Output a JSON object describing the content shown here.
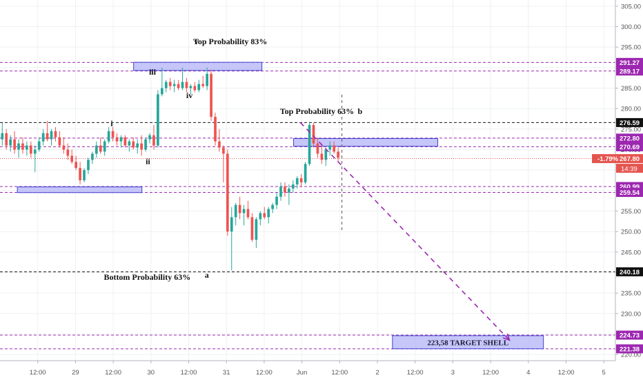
{
  "chart_data": {
    "type": "candlestick",
    "title": "",
    "xlabel": "",
    "ylabel": "",
    "ylim": [
      218.5,
      306.5
    ],
    "y_ticks": [
      220,
      225,
      230,
      235,
      240,
      245,
      250,
      255,
      260,
      265,
      270,
      275,
      280,
      285,
      290,
      295,
      300,
      305
    ],
    "x_ticks": [
      {
        "label": "12:00",
        "t": 0.5
      },
      {
        "label": "29",
        "t": 1
      },
      {
        "label": "12:00",
        "t": 1.5
      },
      {
        "label": "30",
        "t": 2
      },
      {
        "label": "12:00",
        "t": 2.5
      },
      {
        "label": "31",
        "t": 3
      },
      {
        "label": "12:00",
        "t": 3.5
      },
      {
        "label": "Jun",
        "t": 4
      },
      {
        "label": "12:00",
        "t": 4.5
      },
      {
        "label": "2",
        "t": 5
      },
      {
        "label": "12:00",
        "t": 5.5
      },
      {
        "label": "3",
        "t": 6
      },
      {
        "label": "12:00",
        "t": 6.5
      },
      {
        "label": "4",
        "t": 7
      },
      {
        "label": "12:00",
        "t": 7.5
      },
      {
        "label": "5",
        "t": 8
      }
    ],
    "grid": true,
    "colors": {
      "up": "#26a69a",
      "down": "#ef5350",
      "purple_line": "#9c27b0",
      "black_line": "#000000",
      "zone_fill": "#b3b3f5",
      "zone_edge": "#3f3fd0",
      "price_label": "#e5554f"
    },
    "current_price": {
      "value": 267.8,
      "label": "267.80",
      "change_label": "-1.79%",
      "countdown": "14:39"
    },
    "price_levels": [
      {
        "value": 291.27,
        "label": "291.27",
        "style": "purple"
      },
      {
        "value": 289.17,
        "label": "289.17",
        "style": "purple"
      },
      {
        "value": 276.59,
        "label": "276.59",
        "style": "black"
      },
      {
        "value": 272.8,
        "label": "272.80",
        "style": "purple"
      },
      {
        "value": 270.69,
        "label": "270.69",
        "style": "purple"
      },
      {
        "value": 260.99,
        "label": "260.99",
        "style": "purple"
      },
      {
        "value": 259.54,
        "label": "259.54",
        "style": "purple"
      },
      {
        "value": 240.18,
        "label": "240.18",
        "style": "black"
      },
      {
        "value": 224.73,
        "label": "224.73",
        "style": "purple"
      },
      {
        "value": 221.38,
        "label": "221.38",
        "style": "purple"
      }
    ],
    "zones": [
      {
        "t0": 1.77,
        "t1": 3.47,
        "y0": 289.3,
        "y1": 291.3,
        "label": ""
      },
      {
        "t0": 0.23,
        "t1": 1.88,
        "y0": 259.5,
        "y1": 260.9,
        "label": ""
      },
      {
        "t0": 3.89,
        "t1": 5.8,
        "y0": 270.8,
        "y1": 272.7,
        "label": ""
      },
      {
        "t0": 5.2,
        "t1": 7.2,
        "y0": 221.4,
        "y1": 224.6,
        "label": "223,58 TARGET SHELL"
      }
    ],
    "annotations": [
      {
        "text": "v",
        "t": 2.6,
        "y": 295.7
      },
      {
        "text": "Top Probability 83%",
        "t": 3.05,
        "y": 295.7
      },
      {
        "text": "iii",
        "t": 2.02,
        "y": 288.3
      },
      {
        "text": "iv",
        "t": 2.51,
        "y": 282.6
      },
      {
        "text": "i",
        "t": 1.48,
        "y": 275.7
      },
      {
        "text": "ii",
        "t": 1.96,
        "y": 266.5
      },
      {
        "text": "Top Probability 63%",
        "t": 4.2,
        "y": 278.7
      },
      {
        "text": "b",
        "t": 4.77,
        "y": 278.7
      },
      {
        "text": "Bottom Probability 63%",
        "t": 1.95,
        "y": 238.2
      },
      {
        "text": "a",
        "t": 2.74,
        "y": 238.7
      }
    ],
    "projection": {
      "t0": 3.98,
      "y0": 276.6,
      "t1": 6.75,
      "y1": 223.5
    },
    "vertical_marker_t": 4.53,
    "candles": [
      {
        "o": 272.5,
        "h": 276.5,
        "l": 271.0,
        "c": 274.0
      },
      {
        "o": 274.0,
        "h": 275.0,
        "l": 270.0,
        "c": 271.0
      },
      {
        "o": 271.0,
        "h": 273.5,
        "l": 269.5,
        "c": 272.5
      },
      {
        "o": 272.5,
        "h": 274.5,
        "l": 269.0,
        "c": 270.0
      },
      {
        "o": 270.0,
        "h": 272.5,
        "l": 268.0,
        "c": 271.5
      },
      {
        "o": 271.5,
        "h": 273.0,
        "l": 269.0,
        "c": 270.0
      },
      {
        "o": 270.0,
        "h": 272.0,
        "l": 268.5,
        "c": 271.0
      },
      {
        "o": 271.0,
        "h": 272.0,
        "l": 268.0,
        "c": 269.0
      },
      {
        "o": 269.0,
        "h": 271.0,
        "l": 264.5,
        "c": 270.0
      },
      {
        "o": 270.0,
        "h": 273.0,
        "l": 269.5,
        "c": 272.0
      },
      {
        "o": 272.0,
        "h": 275.0,
        "l": 271.0,
        "c": 274.0
      },
      {
        "o": 274.0,
        "h": 277.0,
        "l": 272.0,
        "c": 272.5
      },
      {
        "o": 272.5,
        "h": 275.0,
        "l": 271.0,
        "c": 274.5
      },
      {
        "o": 274.5,
        "h": 275.5,
        "l": 272.0,
        "c": 273.0
      },
      {
        "o": 273.0,
        "h": 274.5,
        "l": 270.5,
        "c": 271.0
      },
      {
        "o": 271.0,
        "h": 273.0,
        "l": 269.0,
        "c": 270.0
      },
      {
        "o": 270.0,
        "h": 271.5,
        "l": 267.5,
        "c": 268.5
      },
      {
        "o": 268.5,
        "h": 270.0,
        "l": 266.5,
        "c": 267.0
      },
      {
        "o": 267.0,
        "h": 268.5,
        "l": 265.0,
        "c": 265.5
      },
      {
        "o": 265.5,
        "h": 267.0,
        "l": 261.5,
        "c": 262.5
      },
      {
        "o": 262.5,
        "h": 265.5,
        "l": 262.0,
        "c": 265.0
      },
      {
        "o": 265.0,
        "h": 268.0,
        "l": 264.0,
        "c": 267.5
      },
      {
        "o": 267.5,
        "h": 269.5,
        "l": 266.5,
        "c": 269.0
      },
      {
        "o": 269.0,
        "h": 272.0,
        "l": 268.0,
        "c": 271.0
      },
      {
        "o": 271.0,
        "h": 273.0,
        "l": 269.0,
        "c": 269.5
      },
      {
        "o": 269.5,
        "h": 272.5,
        "l": 268.5,
        "c": 272.0
      },
      {
        "o": 272.0,
        "h": 275.5,
        "l": 271.5,
        "c": 274.5
      },
      {
        "o": 274.5,
        "h": 275.5,
        "l": 272.0,
        "c": 273.0
      },
      {
        "o": 273.0,
        "h": 274.0,
        "l": 271.0,
        "c": 272.0
      },
      {
        "o": 272.0,
        "h": 273.5,
        "l": 270.5,
        "c": 273.0
      },
      {
        "o": 273.0,
        "h": 273.5,
        "l": 270.5,
        "c": 271.0
      },
      {
        "o": 271.0,
        "h": 272.5,
        "l": 269.5,
        "c": 272.0
      },
      {
        "o": 272.0,
        "h": 273.0,
        "l": 270.0,
        "c": 270.5
      },
      {
        "o": 270.5,
        "h": 272.5,
        "l": 269.0,
        "c": 271.5
      },
      {
        "o": 271.5,
        "h": 273.5,
        "l": 268.5,
        "c": 270.0
      },
      {
        "o": 270.0,
        "h": 273.0,
        "l": 269.5,
        "c": 272.5
      },
      {
        "o": 272.5,
        "h": 274.0,
        "l": 271.5,
        "c": 273.5
      },
      {
        "o": 273.5,
        "h": 276.0,
        "l": 270.0,
        "c": 271.0
      },
      {
        "o": 271.0,
        "h": 284.5,
        "l": 270.5,
        "c": 283.5
      },
      {
        "o": 283.5,
        "h": 290.0,
        "l": 283.0,
        "c": 285.0
      },
      {
        "o": 285.0,
        "h": 287.0,
        "l": 284.0,
        "c": 286.5
      },
      {
        "o": 286.5,
        "h": 287.5,
        "l": 284.5,
        "c": 285.5
      },
      {
        "o": 285.5,
        "h": 287.0,
        "l": 284.0,
        "c": 286.0
      },
      {
        "o": 286.0,
        "h": 287.0,
        "l": 284.5,
        "c": 285.0
      },
      {
        "o": 285.0,
        "h": 290.0,
        "l": 284.5,
        "c": 286.5
      },
      {
        "o": 286.5,
        "h": 287.5,
        "l": 284.0,
        "c": 285.0
      },
      {
        "o": 285.0,
        "h": 286.0,
        "l": 283.5,
        "c": 285.5
      },
      {
        "o": 285.5,
        "h": 286.5,
        "l": 284.0,
        "c": 284.5
      },
      {
        "o": 284.5,
        "h": 287.0,
        "l": 284.0,
        "c": 286.0
      },
      {
        "o": 286.0,
        "h": 288.0,
        "l": 285.0,
        "c": 285.5
      },
      {
        "o": 285.5,
        "h": 290.0,
        "l": 284.5,
        "c": 288.5
      },
      {
        "o": 288.5,
        "h": 289.5,
        "l": 277.0,
        "c": 278.0
      },
      {
        "o": 278.0,
        "h": 279.0,
        "l": 271.0,
        "c": 272.0
      },
      {
        "o": 272.0,
        "h": 275.0,
        "l": 269.5,
        "c": 270.5
      },
      {
        "o": 270.5,
        "h": 271.0,
        "l": 262.0,
        "c": 269.0
      },
      {
        "o": 269.0,
        "h": 270.0,
        "l": 249.0,
        "c": 250.0
      },
      {
        "o": 250.0,
        "h": 256.0,
        "l": 240.5,
        "c": 253.5
      },
      {
        "o": 253.5,
        "h": 257.0,
        "l": 251.5,
        "c": 256.5
      },
      {
        "o": 256.5,
        "h": 258.5,
        "l": 253.0,
        "c": 254.5
      },
      {
        "o": 254.5,
        "h": 256.5,
        "l": 251.5,
        "c": 255.5
      },
      {
        "o": 255.5,
        "h": 257.5,
        "l": 253.0,
        "c": 253.5
      },
      {
        "o": 253.5,
        "h": 254.5,
        "l": 247.5,
        "c": 248.0
      },
      {
        "o": 248.0,
        "h": 253.5,
        "l": 246.0,
        "c": 253.0
      },
      {
        "o": 253.0,
        "h": 255.0,
        "l": 251.5,
        "c": 254.5
      },
      {
        "o": 254.5,
        "h": 256.0,
        "l": 253.0,
        "c": 253.5
      },
      {
        "o": 253.5,
        "h": 256.0,
        "l": 252.0,
        "c": 255.5
      },
      {
        "o": 255.5,
        "h": 257.0,
        "l": 254.5,
        "c": 256.5
      },
      {
        "o": 256.5,
        "h": 259.5,
        "l": 255.5,
        "c": 258.5
      },
      {
        "o": 258.5,
        "h": 262.0,
        "l": 257.5,
        "c": 261.0
      },
      {
        "o": 261.0,
        "h": 262.0,
        "l": 258.5,
        "c": 259.5
      },
      {
        "o": 259.5,
        "h": 261.5,
        "l": 256.5,
        "c": 260.5
      },
      {
        "o": 260.5,
        "h": 262.5,
        "l": 259.5,
        "c": 261.5
      },
      {
        "o": 261.5,
        "h": 263.5,
        "l": 260.5,
        "c": 263.0
      },
      {
        "o": 263.0,
        "h": 264.0,
        "l": 261.0,
        "c": 262.0
      },
      {
        "o": 262.0,
        "h": 267.0,
        "l": 261.5,
        "c": 266.5
      },
      {
        "o": 266.5,
        "h": 276.8,
        "l": 266.0,
        "c": 276.0
      },
      {
        "o": 276.0,
        "h": 276.5,
        "l": 270.5,
        "c": 271.5
      },
      {
        "o": 271.5,
        "h": 273.0,
        "l": 268.0,
        "c": 269.0
      },
      {
        "o": 269.0,
        "h": 271.5,
        "l": 266.5,
        "c": 267.5
      },
      {
        "o": 267.5,
        "h": 270.5,
        "l": 266.0,
        "c": 270.0
      },
      {
        "o": 270.0,
        "h": 272.0,
        "l": 268.5,
        "c": 271.0
      },
      {
        "o": 271.0,
        "h": 272.0,
        "l": 269.0,
        "c": 269.5
      },
      {
        "o": 269.5,
        "h": 270.5,
        "l": 267.0,
        "c": 268.0
      }
    ]
  }
}
